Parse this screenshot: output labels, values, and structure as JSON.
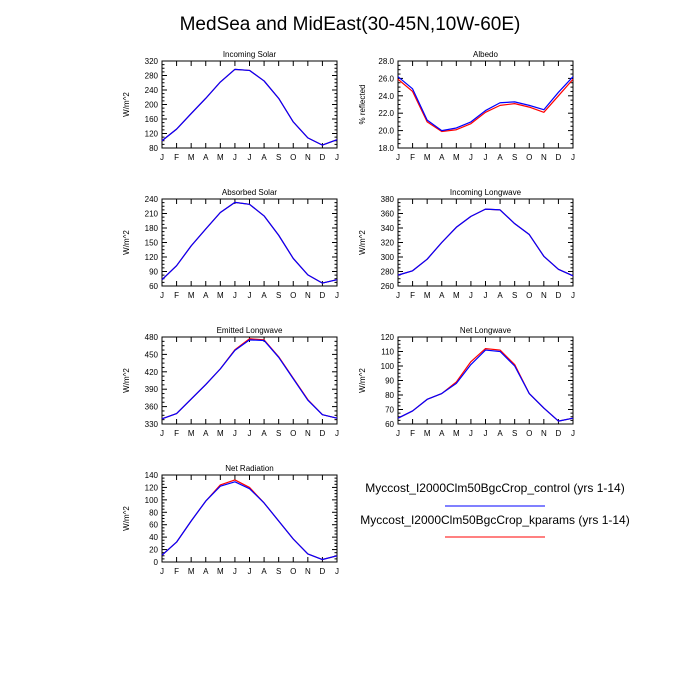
{
  "figure_title": "MedSea and MidEast(30-45N,10W-60E)",
  "months": [
    "J",
    "F",
    "M",
    "A",
    "M",
    "J",
    "J",
    "A",
    "S",
    "O",
    "N",
    "D",
    "J"
  ],
  "colors": {
    "control": "#0000ff",
    "kparams": "#ff0000",
    "axis": "#000000"
  },
  "legend": {
    "control": "Myccost_I2000Clm50BgcCrop_control (yrs 1-14)",
    "kparams": "Myccost_I2000Clm50BgcCrop_kparams (yrs 1-14)"
  },
  "chart_data": [
    {
      "type": "line",
      "title": "Incoming Solar",
      "ylabel": "W/m^2",
      "ylim": [
        80,
        320
      ],
      "yticks": [
        "80",
        "120",
        "160",
        "200",
        "240",
        "280",
        "320"
      ],
      "series": [
        {
          "name": "Myccost_I2000Clm50BgcCrop_control (yrs 1-14)",
          "values": [
            100,
            132,
            175,
            217,
            262,
            297,
            294,
            265,
            217,
            152,
            108,
            88,
            103
          ]
        },
        {
          "name": "Myccost_I2000Clm50BgcCrop_kparams (yrs 1-14)",
          "values": [
            100,
            132,
            175,
            217,
            262,
            297,
            294,
            265,
            217,
            152,
            108,
            88,
            103
          ]
        }
      ]
    },
    {
      "type": "line",
      "title": "Albedo",
      "ylabel": "% reflected",
      "ylim": [
        18,
        28
      ],
      "yticks": [
        "18.0",
        "20.0",
        "22.0",
        "24.0",
        "26.0",
        "28.0"
      ],
      "series": [
        {
          "name": "Myccost_I2000Clm50BgcCrop_control (yrs 1-14)",
          "values": [
            26.2,
            24.8,
            21.2,
            20.0,
            20.3,
            21.0,
            22.3,
            23.2,
            23.3,
            22.9,
            22.4,
            24.4,
            26.2
          ]
        },
        {
          "name": "Myccost_I2000Clm50BgcCrop_kparams (yrs 1-14)",
          "values": [
            25.9,
            24.5,
            21.0,
            19.9,
            20.1,
            20.8,
            22.1,
            22.9,
            23.1,
            22.7,
            22.1,
            24.0,
            25.9
          ]
        }
      ]
    },
    {
      "type": "line",
      "title": "Absorbed Solar",
      "ylabel": "W/m^2",
      "ylim": [
        60,
        240
      ],
      "yticks": [
        "60",
        "90",
        "120",
        "150",
        "180",
        "210",
        "240"
      ],
      "series": [
        {
          "name": "Myccost_I2000Clm50BgcCrop_control (yrs 1-14)",
          "values": [
            73,
            102,
            143,
            178,
            212,
            233,
            229,
            205,
            165,
            117,
            83,
            66,
            73
          ]
        },
        {
          "name": "Myccost_I2000Clm50BgcCrop_kparams (yrs 1-14)",
          "values": [
            73,
            102,
            143,
            178,
            212,
            233,
            229,
            205,
            165,
            117,
            83,
            66,
            73
          ]
        }
      ]
    },
    {
      "type": "line",
      "title": "Incoming Longwave",
      "ylabel": "W/m^2",
      "ylim": [
        260,
        380
      ],
      "yticks": [
        "260",
        "280",
        "300",
        "320",
        "340",
        "360",
        "380"
      ],
      "series": [
        {
          "name": "Myccost_I2000Clm50BgcCrop_control (yrs 1-14)",
          "values": [
            275,
            281,
            297,
            320,
            341,
            356,
            366,
            365,
            346,
            331,
            301,
            283,
            274
          ]
        },
        {
          "name": "Myccost_I2000Clm50BgcCrop_kparams (yrs 1-14)",
          "values": [
            275,
            281,
            297,
            320,
            341,
            356,
            366,
            365,
            346,
            331,
            301,
            283,
            274
          ]
        }
      ]
    },
    {
      "type": "line",
      "title": "Emitted Longwave",
      "ylabel": "W/m^2",
      "ylim": [
        330,
        480
      ],
      "yticks": [
        "330",
        "360",
        "390",
        "420",
        "450",
        "480"
      ],
      "series": [
        {
          "name": "Myccost_I2000Clm50BgcCrop_control (yrs 1-14)",
          "values": [
            339,
            348,
            373,
            398,
            425,
            457,
            475,
            474,
            445,
            408,
            371,
            346,
            340
          ]
        },
        {
          "name": "Myccost_I2000Clm50BgcCrop_kparams (yrs 1-14)",
          "values": [
            339,
            348,
            373,
            398,
            425,
            458,
            477,
            475,
            446,
            409,
            372,
            346,
            340
          ]
        }
      ]
    },
    {
      "type": "line",
      "title": "Net Longwave",
      "ylabel": "W/m^2",
      "ylim": [
        60,
        120
      ],
      "yticks": [
        "60",
        "70",
        "80",
        "90",
        "100",
        "110",
        "120"
      ],
      "series": [
        {
          "name": "Myccost_I2000Clm50BgcCrop_control (yrs 1-14)",
          "values": [
            64,
            69,
            77,
            81,
            88,
            101,
            111,
            110,
            100,
            81,
            71,
            62,
            64
          ]
        },
        {
          "name": "Myccost_I2000Clm50BgcCrop_kparams (yrs 1-14)",
          "values": [
            64,
            69,
            77,
            81,
            89,
            103,
            112,
            111,
            101,
            81,
            71,
            62,
            64
          ]
        }
      ]
    },
    {
      "type": "line",
      "title": "Net Radiation",
      "ylabel": "W/m^2",
      "ylim": [
        0,
        140
      ],
      "yticks": [
        "0",
        "20",
        "40",
        "60",
        "80",
        "100",
        "120",
        "140"
      ],
      "series": [
        {
          "name": "Myccost_I2000Clm50BgcCrop_control (yrs 1-14)",
          "values": [
            11,
            32,
            66,
            98,
            122,
            129,
            118,
            95,
            66,
            37,
            13,
            4,
            10
          ]
        },
        {
          "name": "Myccost_I2000Clm50BgcCrop_kparams (yrs 1-14)",
          "values": [
            11,
            32,
            66,
            98,
            124,
            132,
            120,
            95,
            66,
            37,
            13,
            4,
            10
          ]
        }
      ]
    }
  ]
}
